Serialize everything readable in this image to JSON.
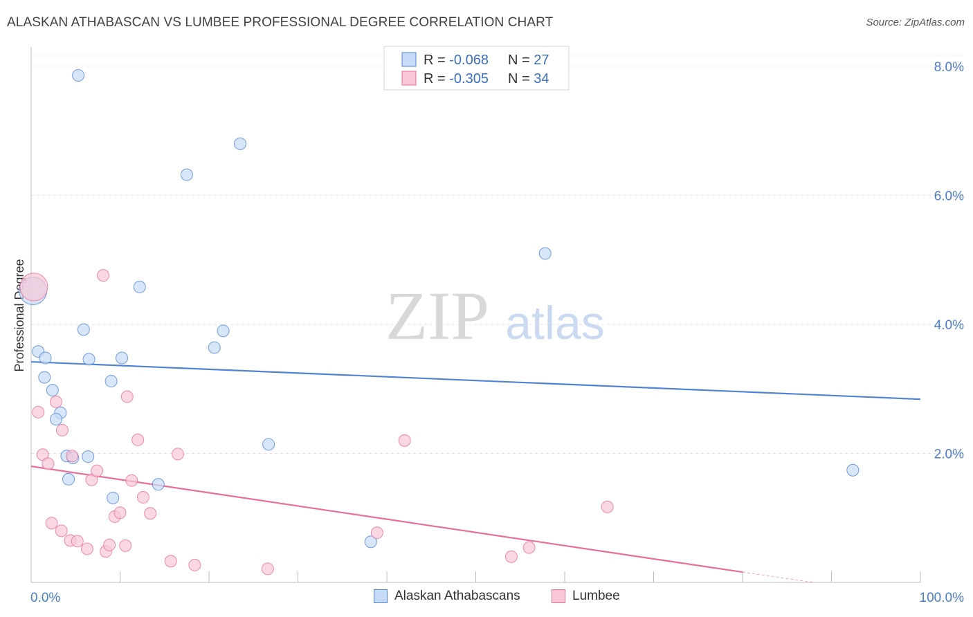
{
  "title": "ALASKAN ATHABASCAN VS LUMBEE PROFESSIONAL DEGREE CORRELATION CHART",
  "source": "Source: ZipAtlas.com",
  "watermark": {
    "zip": "ZIP",
    "atlas": "atlas"
  },
  "chart_data": {
    "type": "scatter",
    "xlabel": "",
    "ylabel": "Professional Degree",
    "xlim": [
      0,
      100
    ],
    "ylim": [
      0,
      8.0
    ],
    "x_tick_labels": [
      "0.0%",
      "100.0%"
    ],
    "y_ticks": [
      2.0,
      4.0,
      6.0,
      8.0
    ],
    "y_tick_labels": [
      "2.0%",
      "4.0%",
      "6.0%",
      "8.0%"
    ],
    "grid": true,
    "legend_stats": [
      {
        "r_label": "R = ",
        "r_value": "-0.068",
        "n_label": "N = ",
        "n_value": "27"
      },
      {
        "r_label": "R = ",
        "r_value": "-0.305",
        "n_label": "N = ",
        "n_value": "34"
      }
    ],
    "series": [
      {
        "name": "Alaskan Athabascans",
        "color": "#4f83d4",
        "fill": "#c7dbf7",
        "trend": {
          "x0": 0,
          "y0": 3.42,
          "x1": 100,
          "y1": 2.84
        },
        "points": [
          {
            "x": 0.2,
            "y": 4.52,
            "big": true
          },
          {
            "x": 0.8,
            "y": 3.58
          },
          {
            "x": 1.6,
            "y": 3.48
          },
          {
            "x": 1.5,
            "y": 3.18
          },
          {
            "x": 2.4,
            "y": 2.98
          },
          {
            "x": 3.3,
            "y": 2.63
          },
          {
            "x": 2.8,
            "y": 2.53
          },
          {
            "x": 4.0,
            "y": 1.96
          },
          {
            "x": 4.2,
            "y": 1.6
          },
          {
            "x": 4.7,
            "y": 1.93
          },
          {
            "x": 5.9,
            "y": 3.92
          },
          {
            "x": 5.3,
            "y": 7.86
          },
          {
            "x": 6.4,
            "y": 1.95
          },
          {
            "x": 6.5,
            "y": 3.46
          },
          {
            "x": 9.0,
            "y": 3.12
          },
          {
            "x": 10.2,
            "y": 3.48
          },
          {
            "x": 9.2,
            "y": 1.31
          },
          {
            "x": 12.2,
            "y": 4.58
          },
          {
            "x": 14.3,
            "y": 1.52
          },
          {
            "x": 17.5,
            "y": 6.32
          },
          {
            "x": 20.6,
            "y": 3.64
          },
          {
            "x": 21.6,
            "y": 3.9
          },
          {
            "x": 23.5,
            "y": 6.8
          },
          {
            "x": 26.7,
            "y": 2.14
          },
          {
            "x": 38.2,
            "y": 0.63
          },
          {
            "x": 57.8,
            "y": 5.1
          },
          {
            "x": 92.4,
            "y": 1.74
          }
        ]
      },
      {
        "name": "Lumbee",
        "color": "#e86e9a",
        "fill": "#f8c8d6",
        "trend": {
          "x0": 0,
          "y0": 1.8,
          "x1": 80,
          "y1": 0.16
        },
        "trend_dash": {
          "x0": 80,
          "y0": 0.16,
          "x1": 88,
          "y1": 0.0
        },
        "points": [
          {
            "x": 0.3,
            "y": 4.58,
            "big": true
          },
          {
            "x": 0.8,
            "y": 2.64
          },
          {
            "x": 1.3,
            "y": 1.98
          },
          {
            "x": 1.9,
            "y": 1.84
          },
          {
            "x": 2.3,
            "y": 0.92
          },
          {
            "x": 2.8,
            "y": 2.8
          },
          {
            "x": 3.5,
            "y": 2.36
          },
          {
            "x": 3.4,
            "y": 0.8
          },
          {
            "x": 4.4,
            "y": 0.65
          },
          {
            "x": 4.6,
            "y": 1.96
          },
          {
            "x": 5.2,
            "y": 0.64
          },
          {
            "x": 6.3,
            "y": 0.52
          },
          {
            "x": 6.8,
            "y": 1.59
          },
          {
            "x": 7.4,
            "y": 1.73
          },
          {
            "x": 8.1,
            "y": 4.76
          },
          {
            "x": 8.4,
            "y": 0.48
          },
          {
            "x": 8.8,
            "y": 0.58
          },
          {
            "x": 9.4,
            "y": 1.02
          },
          {
            "x": 10.0,
            "y": 1.08
          },
          {
            "x": 10.6,
            "y": 0.57
          },
          {
            "x": 10.8,
            "y": 2.88
          },
          {
            "x": 11.3,
            "y": 1.58
          },
          {
            "x": 12.0,
            "y": 2.21
          },
          {
            "x": 12.6,
            "y": 1.32
          },
          {
            "x": 13.4,
            "y": 1.07
          },
          {
            "x": 15.7,
            "y": 0.33
          },
          {
            "x": 16.5,
            "y": 1.99
          },
          {
            "x": 18.4,
            "y": 0.27
          },
          {
            "x": 26.6,
            "y": 0.21
          },
          {
            "x": 38.9,
            "y": 0.77
          },
          {
            "x": 42.0,
            "y": 2.2
          },
          {
            "x": 54.0,
            "y": 0.4
          },
          {
            "x": 56.0,
            "y": 0.54
          },
          {
            "x": 64.8,
            "y": 1.17
          }
        ]
      }
    ]
  }
}
